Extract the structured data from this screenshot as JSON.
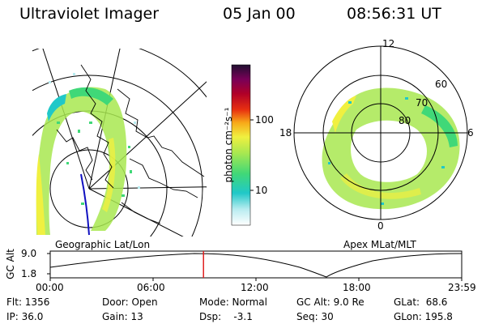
{
  "header": {
    "instrument": "Ultraviolet Imager",
    "date": "05 Jan 00",
    "time": "08:56:31 UT"
  },
  "colorbar": {
    "unit_label": "photon cm⁻²s⁻¹",
    "ticks": [
      "100",
      "10"
    ]
  },
  "left_map": {
    "caption": "Geographic Lat/Lon"
  },
  "right_map": {
    "caption": "Apex MLat/MLT",
    "mlt_labels": [
      "12",
      "18",
      "6",
      "0"
    ],
    "lat_labels": [
      "60",
      "70",
      "80"
    ]
  },
  "altitude_plot": {
    "ylabel": "GC Alt",
    "yticks": [
      "9.0",
      "1.8"
    ],
    "xticks": [
      "00:00",
      "06:00",
      "12:00",
      "18:00",
      "23:59"
    ],
    "current_time_fraction": 0.3725
  },
  "status": {
    "flt": "Flt: 1356",
    "ip": "IP: 36.0",
    "door": "Door: Open",
    "gain": "Gain: 13",
    "mode": "Mode: Normal",
    "dsp": "Dsp:    -3.1",
    "gcalt": "GC Alt: 9.0 Re",
    "seq": "Seq: 30",
    "glat": "GLat:  68.6",
    "glon": "GLon: 195.8"
  }
}
